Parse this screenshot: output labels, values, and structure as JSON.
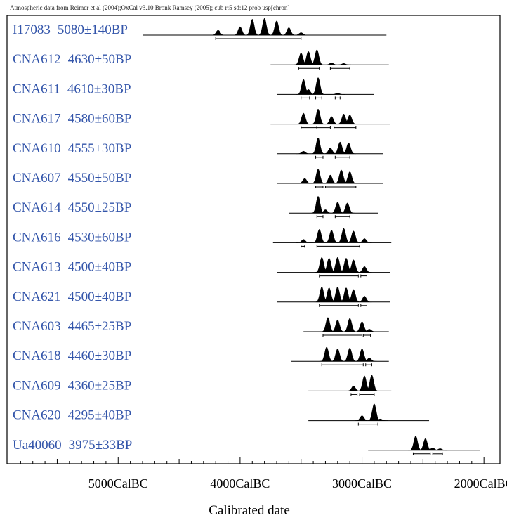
{
  "chart_data": {
    "type": "oxcal-calibration",
    "header": "Atmospheric data from Reimer et al (2004);OxCal v3.10 Bronk Ramsey (2005); cub r:5 sd:12 prob usp[chron]",
    "xlabel": "Calibrated date",
    "xlim": [
      5900,
      1880
    ],
    "x_ticks": [
      {
        "value": 5000,
        "label": "5000CalBC"
      },
      {
        "value": 4000,
        "label": "4000CalBC"
      },
      {
        "value": 3000,
        "label": "3000CalBC"
      },
      {
        "value": 2000,
        "label": "2000CalBC"
      }
    ],
    "samples": [
      {
        "lab_code": "I17083",
        "age": "5080±140BP",
        "line": [
          4800,
          2800
        ],
        "peaks": [
          [
            4180,
            0.3
          ],
          [
            4000,
            0.5
          ],
          [
            3900,
            0.95
          ],
          [
            3800,
            1.0
          ],
          [
            3700,
            0.85
          ],
          [
            3600,
            0.45
          ],
          [
            3500,
            0.15
          ]
        ],
        "ranges": [
          [
            4200,
            3500
          ]
        ]
      },
      {
        "lab_code": "CNA612",
        "age": "4630±50BP",
        "line": [
          3750,
          2780
        ],
        "peaks": [
          [
            3500,
            0.7
          ],
          [
            3440,
            0.8
          ],
          [
            3370,
            0.9
          ],
          [
            3250,
            0.12
          ],
          [
            3150,
            0.08
          ]
        ],
        "ranges": [
          [
            3520,
            3350
          ],
          [
            3260,
            3100
          ]
        ]
      },
      {
        "lab_code": "CNA611",
        "age": "4610±30BP",
        "line": [
          3700,
          2900
        ],
        "peaks": [
          [
            3480,
            0.9
          ],
          [
            3440,
            0.3
          ],
          [
            3360,
            1.0
          ],
          [
            3200,
            0.08
          ]
        ],
        "ranges": [
          [
            3500,
            3430
          ],
          [
            3380,
            3330
          ],
          [
            3220,
            3180
          ]
        ]
      },
      {
        "lab_code": "CNA617",
        "age": "4580±60BP",
        "line": [
          3750,
          2770
        ],
        "peaks": [
          [
            3480,
            0.65
          ],
          [
            3360,
            0.9
          ],
          [
            3250,
            0.45
          ],
          [
            3150,
            0.6
          ],
          [
            3100,
            0.55
          ]
        ],
        "ranges": [
          [
            3500,
            3370
          ],
          [
            3370,
            3260
          ],
          [
            3230,
            3050
          ]
        ]
      },
      {
        "lab_code": "CNA610",
        "age": "4555±30BP",
        "line": [
          3700,
          2830
        ],
        "peaks": [
          [
            3480,
            0.15
          ],
          [
            3360,
            0.95
          ],
          [
            3260,
            0.35
          ],
          [
            3180,
            0.7
          ],
          [
            3110,
            0.65
          ]
        ],
        "ranges": [
          [
            3380,
            3320
          ],
          [
            3220,
            3100
          ]
        ]
      },
      {
        "lab_code": "CNA607",
        "age": "4550±50BP",
        "line": [
          3700,
          2830
        ],
        "peaks": [
          [
            3470,
            0.3
          ],
          [
            3360,
            0.85
          ],
          [
            3260,
            0.5
          ],
          [
            3170,
            0.8
          ],
          [
            3100,
            0.7
          ]
        ],
        "ranges": [
          [
            3380,
            3320
          ],
          [
            3300,
            3050
          ]
        ]
      },
      {
        "lab_code": "CNA614",
        "age": "4550±25BP",
        "line": [
          3600,
          2870
        ],
        "peaks": [
          [
            3360,
            1.0
          ],
          [
            3300,
            0.2
          ],
          [
            3200,
            0.65
          ],
          [
            3120,
            0.6
          ]
        ],
        "ranges": [
          [
            3370,
            3320
          ],
          [
            3220,
            3100
          ]
        ]
      },
      {
        "lab_code": "CNA616",
        "age": "4530±60BP",
        "line": [
          3730,
          2760
        ],
        "peaks": [
          [
            3480,
            0.2
          ],
          [
            3350,
            0.8
          ],
          [
            3250,
            0.75
          ],
          [
            3150,
            0.85
          ],
          [
            3070,
            0.7
          ],
          [
            2980,
            0.25
          ]
        ],
        "ranges": [
          [
            3500,
            3470
          ],
          [
            3370,
            3020
          ]
        ]
      },
      {
        "lab_code": "CNA613",
        "age": "4500±40BP",
        "line": [
          3700,
          2770
        ],
        "peaks": [
          [
            3330,
            0.9
          ],
          [
            3270,
            0.85
          ],
          [
            3200,
            0.9
          ],
          [
            3130,
            0.85
          ],
          [
            3070,
            0.75
          ],
          [
            2980,
            0.35
          ]
        ],
        "ranges": [
          [
            3350,
            3030
          ],
          [
            3010,
            2960
          ]
        ]
      },
      {
        "lab_code": "CNA621",
        "age": "4500±40BP",
        "line": [
          3700,
          2770
        ],
        "peaks": [
          [
            3330,
            0.9
          ],
          [
            3270,
            0.85
          ],
          [
            3200,
            0.9
          ],
          [
            3130,
            0.85
          ],
          [
            3070,
            0.75
          ],
          [
            2980,
            0.35
          ]
        ],
        "ranges": [
          [
            3350,
            3030
          ],
          [
            3010,
            2960
          ]
        ]
      },
      {
        "lab_code": "CNA603",
        "age": "4465±25BP",
        "line": [
          3480,
          2780
        ],
        "peaks": [
          [
            3280,
            0.85
          ],
          [
            3200,
            0.7
          ],
          [
            3100,
            0.8
          ],
          [
            3000,
            0.6
          ],
          [
            2940,
            0.15
          ]
        ],
        "ranges": [
          [
            3320,
            3000
          ],
          [
            2990,
            2930
          ]
        ]
      },
      {
        "lab_code": "CNA618",
        "age": "4460±30BP",
        "line": [
          3580,
          2780
        ],
        "peaks": [
          [
            3290,
            0.85
          ],
          [
            3200,
            0.75
          ],
          [
            3100,
            0.8
          ],
          [
            3000,
            0.75
          ],
          [
            2940,
            0.2
          ]
        ],
        "ranges": [
          [
            3330,
            2990
          ],
          [
            2970,
            2920
          ]
        ]
      },
      {
        "lab_code": "CNA609",
        "age": "4360±25BP",
        "line": [
          3440,
          2760
        ],
        "peaks": [
          [
            3070,
            0.3
          ],
          [
            2980,
            0.9
          ],
          [
            2920,
            0.95
          ]
        ],
        "ranges": [
          [
            3090,
            3040
          ],
          [
            3020,
            2900
          ]
        ]
      },
      {
        "lab_code": "CNA620",
        "age": "4295±40BP",
        "line": [
          3440,
          2450
        ],
        "peaks": [
          [
            3000,
            0.3
          ],
          [
            2900,
            1.0
          ],
          [
            2850,
            0.1
          ]
        ],
        "ranges": [
          [
            3030,
            2870
          ]
        ]
      },
      {
        "lab_code": "Ua40060",
        "age": "3975±33BP",
        "line": [
          2950,
          2030
        ],
        "peaks": [
          [
            2560,
            0.85
          ],
          [
            2480,
            0.7
          ],
          [
            2420,
            0.15
          ],
          [
            2360,
            0.1
          ]
        ],
        "ranges": [
          [
            2580,
            2440
          ],
          [
            2420,
            2340
          ]
        ]
      }
    ]
  }
}
